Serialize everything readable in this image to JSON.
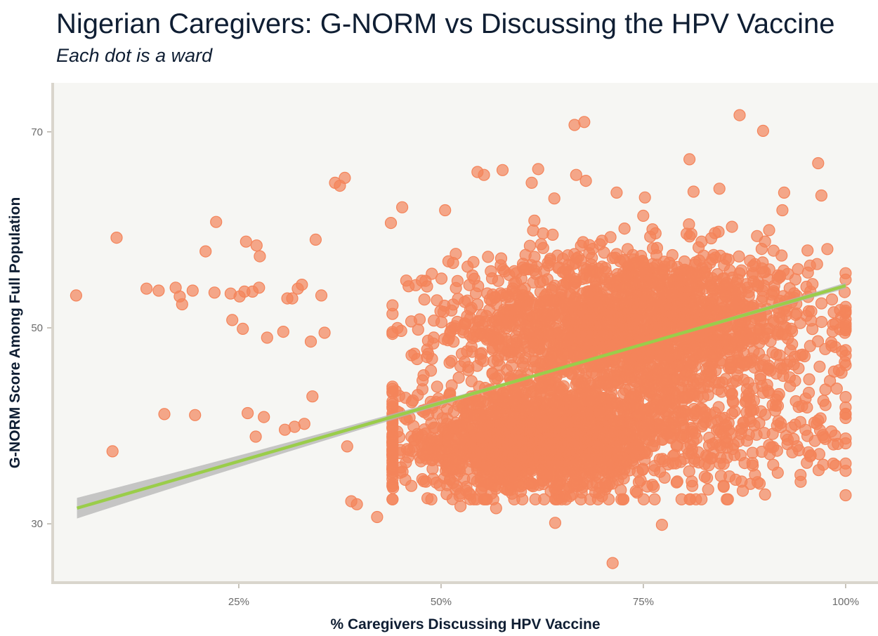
{
  "title": "Nigerian Caregivers: G-NORM vs Discussing the HPV Vaccine",
  "subtitle": "Each dot is a ward",
  "colors": {
    "background": "#ffffff",
    "panel": "#f6f6f3",
    "axis_line": "#d9d5cc",
    "points": "#f4845a",
    "trend_line": "#9acd4a",
    "confidence_band": "#b4b4b4"
  },
  "chart_data": {
    "type": "scatter",
    "title": "Nigerian Caregivers: G-NORM vs Discussing the HPV Vaccine",
    "subtitle": "Each dot is a ward",
    "xlabel": "% Caregivers Discussing HPV Vaccine",
    "ylabel": "G-NORM Score Among Full Population",
    "xlim": [
      0.02,
      1.04
    ],
    "ylim": [
      24,
      75
    ],
    "x_ticks": [
      0.25,
      0.5,
      0.75,
      1.0
    ],
    "x_tick_labels": [
      "25%",
      "50%",
      "75%",
      "100%"
    ],
    "y_ticks": [
      30,
      50,
      70
    ],
    "y_tick_labels": [
      "30",
      "50",
      "70"
    ],
    "grid": false,
    "point_count_approx": 4000,
    "trend_line": {
      "type": "linear",
      "x": [
        0.05,
        1.0
      ],
      "y": [
        31.6,
        54.3
      ],
      "confidence_band": true
    },
    "clusters": [
      {
        "x_center": 0.74,
        "y_center": 50.5,
        "x_spread": 0.11,
        "y_spread": 3.8,
        "share": 0.5
      },
      {
        "x_center": 0.61,
        "y_center": 38.0,
        "x_spread": 0.085,
        "y_spread": 2.4,
        "share": 0.3
      },
      {
        "x_center": 0.72,
        "y_center": 40.0,
        "x_spread": 0.13,
        "y_spread": 3.4,
        "share": 0.2
      }
    ],
    "outlier_points": [
      {
        "x": 0.049,
        "y": 53.3
      },
      {
        "x": 0.094,
        "y": 37.4
      },
      {
        "x": 0.099,
        "y": 59.2
      },
      {
        "x": 0.136,
        "y": 54.0
      },
      {
        "x": 0.151,
        "y": 53.8
      },
      {
        "x": 0.158,
        "y": 41.2
      },
      {
        "x": 0.172,
        "y": 54.1
      },
      {
        "x": 0.177,
        "y": 53.2
      },
      {
        "x": 0.18,
        "y": 52.4
      },
      {
        "x": 0.193,
        "y": 53.8
      },
      {
        "x": 0.196,
        "y": 41.1
      },
      {
        "x": 0.209,
        "y": 57.8
      },
      {
        "x": 0.22,
        "y": 53.6
      },
      {
        "x": 0.222,
        "y": 60.8
      },
      {
        "x": 0.24,
        "y": 53.5
      },
      {
        "x": 0.242,
        "y": 50.8
      },
      {
        "x": 0.251,
        "y": 53.2
      },
      {
        "x": 0.257,
        "y": 53.7
      },
      {
        "x": 0.255,
        "y": 49.9
      },
      {
        "x": 0.259,
        "y": 58.8
      },
      {
        "x": 0.261,
        "y": 41.3
      },
      {
        "x": 0.267,
        "y": 53.7
      },
      {
        "x": 0.271,
        "y": 38.9
      },
      {
        "x": 0.272,
        "y": 58.4
      },
      {
        "x": 0.275,
        "y": 54.1
      },
      {
        "x": 0.276,
        "y": 57.3
      },
      {
        "x": 0.281,
        "y": 40.9
      },
      {
        "x": 0.285,
        "y": 49.0
      },
      {
        "x": 0.305,
        "y": 49.6
      },
      {
        "x": 0.307,
        "y": 39.6
      },
      {
        "x": 0.31,
        "y": 53.0
      },
      {
        "x": 0.316,
        "y": 53.0
      },
      {
        "x": 0.319,
        "y": 39.9
      },
      {
        "x": 0.323,
        "y": 54.0
      },
      {
        "x": 0.328,
        "y": 54.4
      },
      {
        "x": 0.331,
        "y": 40.2
      },
      {
        "x": 0.339,
        "y": 48.6
      },
      {
        "x": 0.341,
        "y": 43.0
      },
      {
        "x": 0.345,
        "y": 59.0
      },
      {
        "x": 0.352,
        "y": 53.3
      },
      {
        "x": 0.356,
        "y": 49.5
      },
      {
        "x": 0.369,
        "y": 64.8
      },
      {
        "x": 0.375,
        "y": 64.5
      },
      {
        "x": 0.381,
        "y": 65.3
      },
      {
        "x": 0.384,
        "y": 37.9
      },
      {
        "x": 0.389,
        "y": 32.3
      },
      {
        "x": 0.396,
        "y": 32.0
      },
      {
        "x": 0.421,
        "y": 30.7
      },
      {
        "x": 0.438,
        "y": 60.7
      },
      {
        "x": 0.452,
        "y": 62.3
      },
      {
        "x": 0.488,
        "y": 32.5
      },
      {
        "x": 0.505,
        "y": 62.0
      },
      {
        "x": 0.524,
        "y": 31.8
      },
      {
        "x": 0.545,
        "y": 65.9
      },
      {
        "x": 0.553,
        "y": 65.6
      },
      {
        "x": 0.576,
        "y": 66.1
      },
      {
        "x": 0.568,
        "y": 31.6
      },
      {
        "x": 0.612,
        "y": 64.8
      },
      {
        "x": 0.62,
        "y": 66.2
      },
      {
        "x": 0.64,
        "y": 63.2
      },
      {
        "x": 0.641,
        "y": 30.1
      },
      {
        "x": 0.665,
        "y": 70.7
      },
      {
        "x": 0.667,
        "y": 65.6
      },
      {
        "x": 0.677,
        "y": 71.0
      },
      {
        "x": 0.679,
        "y": 65.0
      },
      {
        "x": 0.717,
        "y": 63.8
      },
      {
        "x": 0.712,
        "y": 26.0
      },
      {
        "x": 0.752,
        "y": 63.3
      },
      {
        "x": 0.773,
        "y": 29.9
      },
      {
        "x": 0.807,
        "y": 67.2
      },
      {
        "x": 0.812,
        "y": 63.9
      },
      {
        "x": 0.844,
        "y": 64.2
      },
      {
        "x": 0.864,
        "y": 34.5
      },
      {
        "x": 0.869,
        "y": 71.7
      },
      {
        "x": 0.888,
        "y": 35.0
      },
      {
        "x": 0.898,
        "y": 70.1
      },
      {
        "x": 0.924,
        "y": 63.8
      },
      {
        "x": 0.954,
        "y": 37.3
      },
      {
        "x": 0.966,
        "y": 66.8
      },
      {
        "x": 0.97,
        "y": 63.5
      },
      {
        "x": 0.975,
        "y": 43.7
      },
      {
        "x": 0.989,
        "y": 43.8
      },
      {
        "x": 0.999,
        "y": 46.5
      },
      {
        "x": 0.999,
        "y": 49.5
      }
    ]
  }
}
